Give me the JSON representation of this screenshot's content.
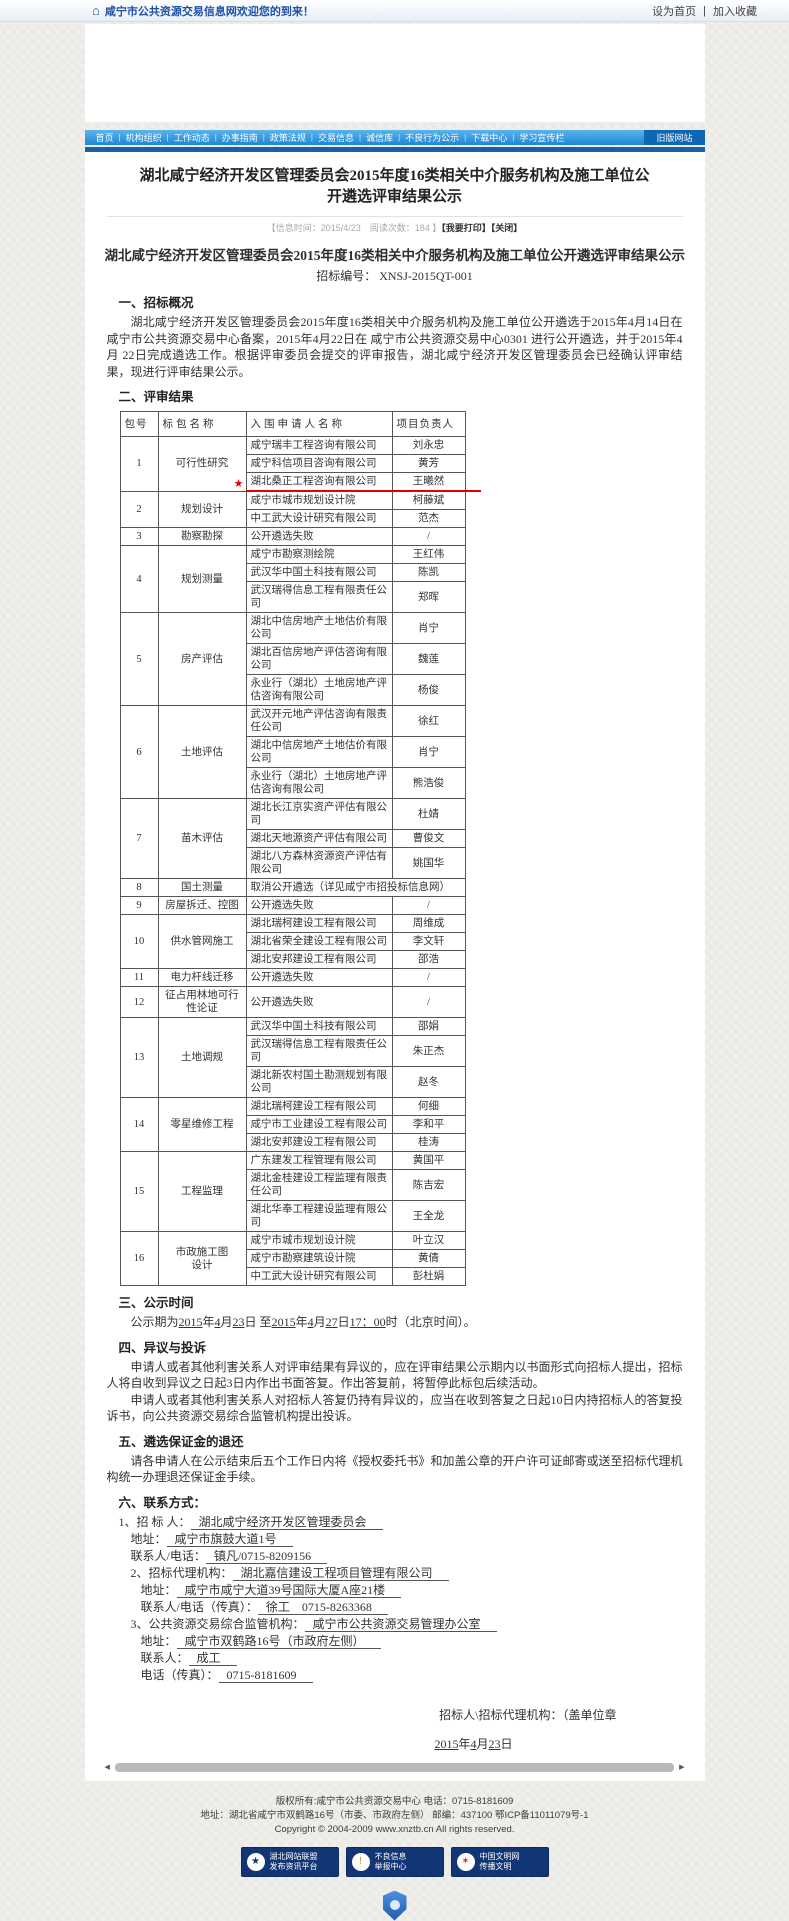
{
  "topbar": {
    "welcome": "咸宁市公共资源交易信息网欢迎您的到来！",
    "set_home": "设为首页",
    "divider": "|",
    "add_favorite": "加入收藏"
  },
  "nav": {
    "items": [
      "首页",
      "机构组织",
      "工作动态",
      "办事指南",
      "政策法规",
      "交易信息",
      "诚信库",
      "不良行为公示",
      "下载中心",
      "学习宣传栏",
      "旧版网站"
    ]
  },
  "article": {
    "title": "湖北咸宁经济开发区管理委员会2015年度16类相关中介服务机构及施工单位公开遴选评审结果公示",
    "meta_info": "【信息时间：2015/4/23　阅读次数：184 】",
    "print_label": "【我要打印】",
    "close_label": "【关闭】",
    "subtitle": "湖北咸宁经济开发区管理委员会2015年度16类相关中介服务机构及施工单位公开遴选评审结果公示",
    "bid_no_label": "招标编号：",
    "bid_no": "XNSJ-2015QT-001"
  },
  "sections": {
    "s1_head": "一、招标概况",
    "s1_para": "湖北咸宁经济开发区管理委员会2015年度16类相关中介服务机构及施工单位公开遴选于2015年4月14日在咸宁市公共资源交易中心备案，2015年4月22日在 咸宁市公共资源交易中心0301 进行公开遴选，并于2015年4 月 22日完成遴选工作。根据评审委员会提交的评审报告，湖北咸宁经济开发区管理委员会已经确认评审结果，现进行评审结果公示。",
    "s2_head": "二、评审结果",
    "s3_head": "三、公示时间",
    "s3_parts": [
      {
        "t": "公示期为"
      },
      {
        "t": "2015",
        "u": 1
      },
      {
        "t": "年"
      },
      {
        "t": "4",
        "u": 1
      },
      {
        "t": "月"
      },
      {
        "t": "23",
        "u": 1
      },
      {
        "t": "日 至"
      },
      {
        "t": "2015",
        "u": 1
      },
      {
        "t": "年"
      },
      {
        "t": "4",
        "u": 1
      },
      {
        "t": "月"
      },
      {
        "t": "27",
        "u": 1
      },
      {
        "t": "日"
      },
      {
        "t": "17：00",
        "u": 1
      },
      {
        "t": "时（北京时间）。"
      }
    ],
    "s4_head": "四、异议与投诉",
    "s4_p1": "申请人或者其他利害关系人对评审结果有异议的，应在评审结果公示期内以书面形式向招标人提出，招标人将自收到异议之日起3日内作出书面答复。作出答复前，将暂停此标包后续活动。",
    "s4_p2": "申请人或者其他利害关系人对招标人答复仍持有异议的，应当在收到答复之日起10日内持招标人的答复投诉书，向公共资源交易综合监管机构提出投诉。",
    "s5_head": "五、遴选保证金的退还",
    "s5_p": "请各申请人在公示结束后五个工作日内将《授权委托书》和加盖公章的开户许可证邮寄或送至招标代理机构统一办理退还保证金手续。",
    "s6_head": "六、联系方式："
  },
  "table": {
    "headers": [
      "包号",
      "标包名称",
      "入围申请人名称",
      "项目负责人"
    ],
    "rows": [
      {
        "no": "1",
        "name": "可行性研究",
        "star": true,
        "entries": [
          {
            "c": "咸宁瑞丰工程咨询有限公司",
            "p": "刘永忠"
          },
          {
            "c": "咸宁科信项目咨询有限公司",
            "p": "黄芳"
          },
          {
            "c": "湖北桑正工程咨询有限公司",
            "p": "王曦然",
            "red": true
          }
        ]
      },
      {
        "no": "2",
        "name": "规划设计",
        "entries": [
          {
            "c": "咸宁市城市规划设计院",
            "p": "柯藤斌"
          },
          {
            "c": "中工武大设计研究有限公司",
            "p": "范杰"
          }
        ]
      },
      {
        "no": "3",
        "name": "勘察勘探",
        "entries": [
          {
            "c": "公开遴选失败",
            "p": "/"
          }
        ]
      },
      {
        "no": "4",
        "name": "规划测量",
        "entries": [
          {
            "c": "咸宁市勘察测绘院",
            "p": "王红伟"
          },
          {
            "c": "武汉华中国土科技有限公司",
            "p": "陈凯"
          },
          {
            "c": "武汉瑞得信息工程有限责任公司",
            "p": "郑晖"
          }
        ]
      },
      {
        "no": "5",
        "name": "房产评估",
        "entries": [
          {
            "c": "湖北中信房地产土地估价有限公司",
            "p": "肖宁"
          },
          {
            "c": "湖北百信房地产评估咨询有限公司",
            "p": "魏莲"
          },
          {
            "c": "永业行（湖北）土地房地产评估咨询有限公司",
            "p": "杨俊"
          }
        ]
      },
      {
        "no": "6",
        "name": "土地评估",
        "entries": [
          {
            "c": "武汉开元地产评估咨询有限责任公司",
            "p": "徐红"
          },
          {
            "c": "湖北中信房地产土地估价有限公司",
            "p": "肖宁"
          },
          {
            "c": "永业行（湖北）土地房地产评估咨询有限公司",
            "p": "熊浩俊"
          }
        ]
      },
      {
        "no": "7",
        "name": "苗木评估",
        "entries": [
          {
            "c": "湖北长江京实资产评估有限公司",
            "p": "杜婧"
          },
          {
            "c": "湖北天地源资产评估有限公司",
            "p": "曹俊文"
          },
          {
            "c": "湖北八方森林资源资产评估有限公司",
            "p": "姚国华"
          }
        ]
      },
      {
        "no": "8",
        "name": "国土测量",
        "entries": [
          {
            "c": "取消公开遴选（详见咸宁市招投标信息网）",
            "span": true
          }
        ]
      },
      {
        "no": "9",
        "name": "房屋拆迁、控图",
        "entries": [
          {
            "c": "公开遴选失败",
            "p": "/"
          }
        ]
      },
      {
        "no": "10",
        "name": "供水管网施工",
        "entries": [
          {
            "c": "湖北瑞柯建设工程有限公司",
            "p": "周维成"
          },
          {
            "c": "湖北省荣全建设工程有限公司",
            "p": "李文轩"
          },
          {
            "c": "湖北安邦建设工程有限公司",
            "p": "邵浩"
          }
        ]
      },
      {
        "no": "11",
        "name": "电力杆线迁移",
        "entries": [
          {
            "c": "公开遴选失败",
            "p": "/"
          }
        ]
      },
      {
        "no": "12",
        "name": "征占用林地可行性论证",
        "entries": [
          {
            "c": "公开遴选失败",
            "p": "/"
          }
        ]
      },
      {
        "no": "13",
        "name": "土地调规",
        "entries": [
          {
            "c": "武汉华中国土科技有限公司",
            "p": "邵娟"
          },
          {
            "c": "武汉瑞得信息工程有限责任公司",
            "p": "朱正杰"
          },
          {
            "c": "湖北新农村国土勘测规划有限公司",
            "p": "赵冬"
          }
        ]
      },
      {
        "no": "14",
        "name": "零星维修工程",
        "entries": [
          {
            "c": "湖北瑞柯建设工程有限公司",
            "p": "何细"
          },
          {
            "c": "咸宁市工业建设工程有限公司",
            "p": "李和平"
          },
          {
            "c": "湖北安邦建设工程有限公司",
            "p": "桂涛"
          }
        ]
      },
      {
        "no": "15",
        "name": "工程监理",
        "entries": [
          {
            "c": "广东建发工程管理有限公司",
            "p": "黄国平"
          },
          {
            "c": "湖北金桂建设工程监理有限责任公司",
            "p": "陈吉宏"
          },
          {
            "c": "湖北华奉工程建设监理有限公司",
            "p": "王全龙"
          }
        ]
      },
      {
        "no": "16",
        "name": "市政施工图\n设计",
        "entries": [
          {
            "c": "咸宁市城市规划设计院",
            "p": "叶立汉"
          },
          {
            "c": "咸宁市勘察建筑设计院",
            "p": "黄倩"
          },
          {
            "c": "中工武大设计研究有限公司",
            "p": "彭杜娟"
          }
        ]
      }
    ]
  },
  "contacts": [
    {
      "label": "1、招 标 人：",
      "value": "湖北咸宁经济开发区管理委员会",
      "indent": 0
    },
    {
      "label": "地址：",
      "value": "咸宁市旗鼓大道1号",
      "indent": 1
    },
    {
      "label": "联系人/电话：",
      "value": "镇凡/0715-8209156",
      "indent": 1
    },
    {
      "label": "2、招标代理机构：",
      "value": "湖北嘉信建设工程项目管理有限公司",
      "indent": 1
    },
    {
      "label": "地址：",
      "value": "咸宁市咸宁大道39号国际大厦A座21楼",
      "indent": 2
    },
    {
      "label": "联系人/电话（传真）：",
      "value": "徐工　0715-8263368",
      "indent": 2
    },
    {
      "label": "3、公共资源交易综合监管机构：",
      "value": "咸宁市公共资源交易管理办公室",
      "indent": 1
    },
    {
      "label": "地址：",
      "value": "咸宁市双鹤路16号（市政府左侧）",
      "indent": 2
    },
    {
      "label": "联系人：",
      "value": "成工",
      "indent": 2
    },
    {
      "label": "电话（传真）：",
      "value": "0715-8181609",
      "indent": 2
    }
  ],
  "signature": {
    "line": "招标人\\招标代理机构：（盖单位章",
    "date_parts": [
      {
        "t": "2015",
        "u": 1
      },
      {
        "t": "年"
      },
      {
        "t": "4",
        "u": 1
      },
      {
        "t": "月"
      },
      {
        "t": "23",
        "u": 1
      },
      {
        "t": "日"
      }
    ]
  },
  "footer": {
    "line1": "版权所有:咸宁市公共资源交易中心 电话：0715-8181609",
    "line2": "地址：湖北省咸宁市双鹤路16号（市委、市政府左侧） 邮编：437100 鄂ICP备11011079号-1",
    "line3": "Copyright © 2004-2009 www.xnztb.cn All rights reserved.",
    "badges": [
      {
        "line1": "湖北网站联盟",
        "line2": "发布资讯平台",
        "icon": "union-badge-icon"
      },
      {
        "line1": "不良信息",
        "line2": "举报中心",
        "icon": "report-badge-icon"
      },
      {
        "line1": "中国文明网",
        "line2": "传播文明",
        "icon": "civilization-badge-icon"
      }
    ]
  },
  "colors": {
    "accent_red": "#e60000",
    "nav_blue": "#2a8fd8",
    "navy_strip": "#1c5fa5",
    "badge_navy": "#123575"
  }
}
